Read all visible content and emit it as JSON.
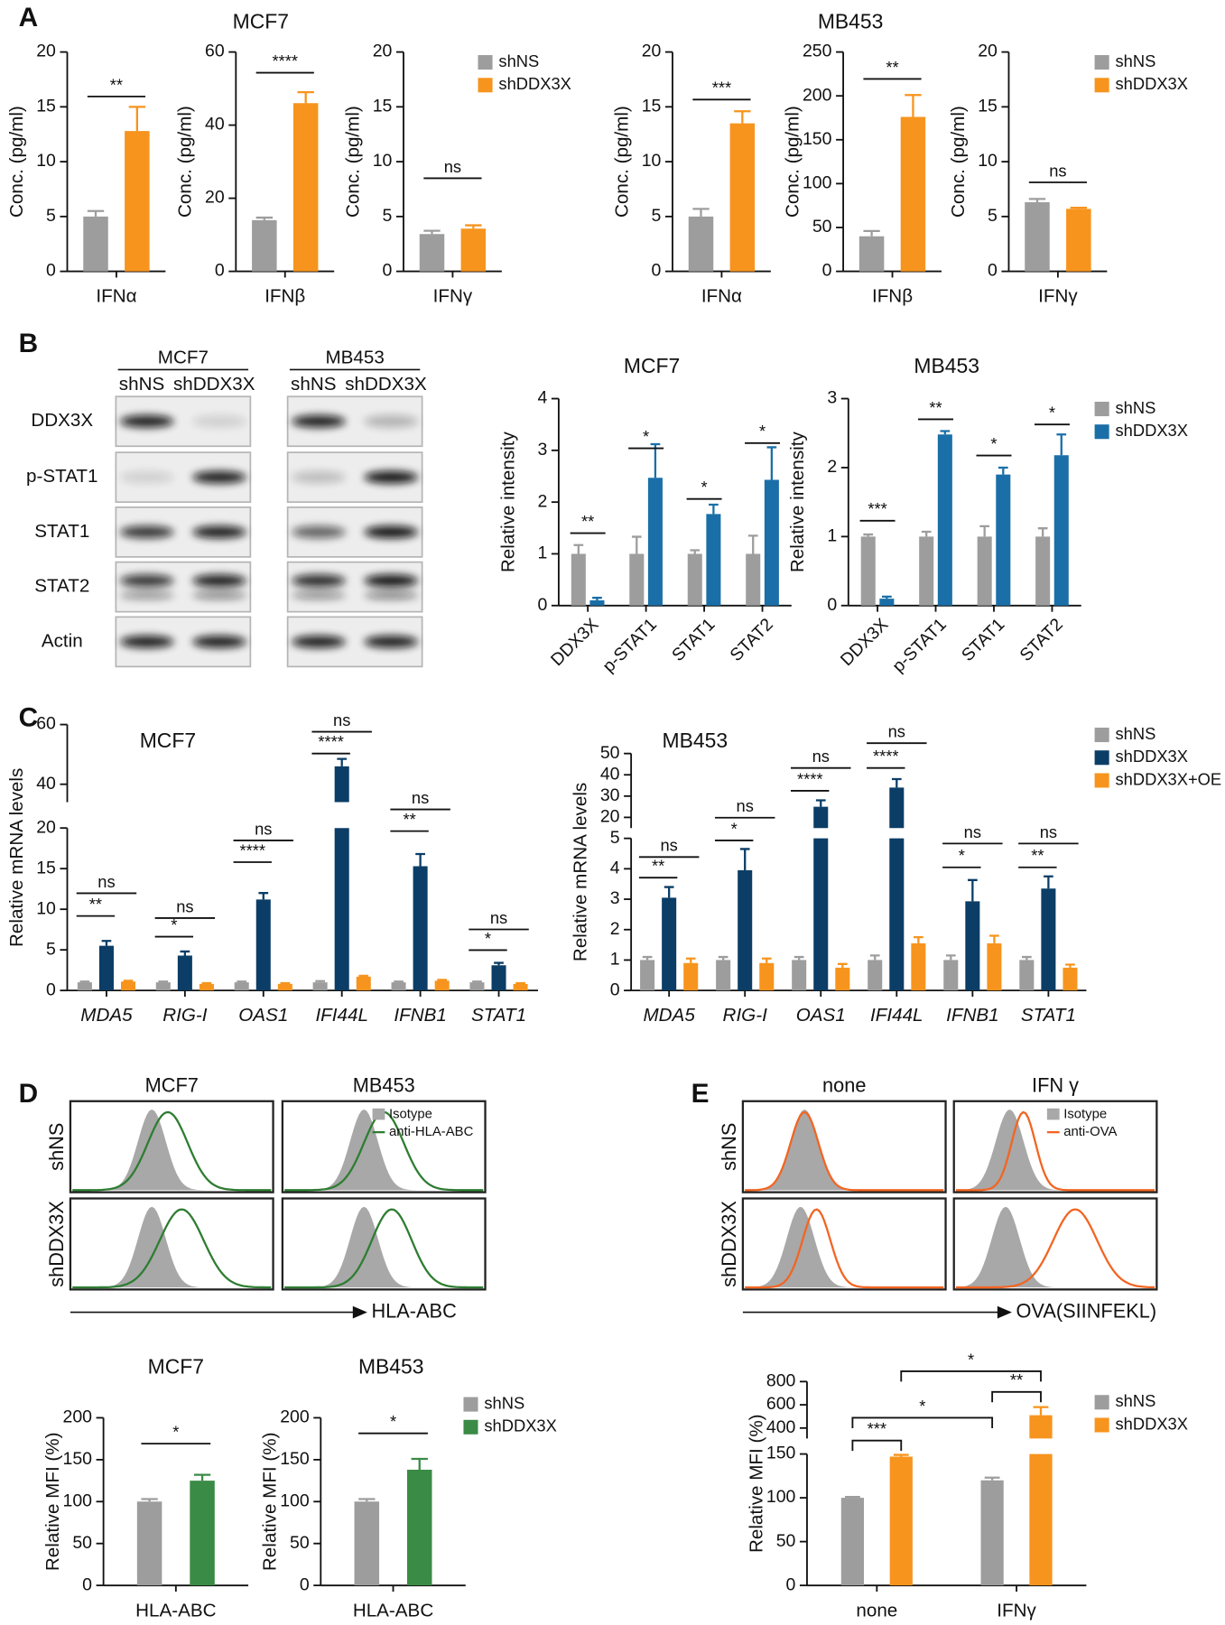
{
  "panels": {
    "letters": [
      "A",
      "B",
      "C",
      "D",
      "E"
    ]
  },
  "blots": {
    "cell_lines": [
      "MCF7",
      "MB453"
    ],
    "conditions": [
      "shNS",
      "shDDX3X"
    ],
    "proteins": [
      "DDX3X",
      "p-STAT1",
      "STAT1",
      "STAT2",
      "Actin"
    ]
  },
  "flow_d": {
    "columns": [
      "MCF7",
      "MB453"
    ],
    "rows": [
      "shNS",
      "shDDX3X"
    ],
    "legend": [
      "Isotype",
      "anti-HLA-ABC"
    ],
    "x_label": "HLA-ABC",
    "color": "#2e7d32"
  },
  "flow_e": {
    "columns": [
      "none",
      "IFN γ"
    ],
    "rows": [
      "shNS",
      "shDDX3X"
    ],
    "legend": [
      "Isotype",
      "anti-OVA"
    ],
    "x_label": "OVA(SIINFEKL)",
    "color": "#f26522"
  },
  "chart_data": [
    {
      "type": "bar",
      "ylabel": "Conc. (pg/ml)",
      "categories": [
        "IFNα"
      ],
      "ylim": [
        0,
        20
      ],
      "yticks": [
        0,
        5,
        10,
        15,
        20
      ],
      "series": [
        {
          "name": "shNS",
          "color": "#9d9d9d",
          "values": [
            5
          ],
          "errors": [
            0.5
          ]
        },
        {
          "name": "shDDX3X",
          "color": "#f7941d",
          "values": [
            12.8
          ],
          "errors": [
            2.2
          ]
        }
      ],
      "annotations": [
        "**"
      ]
    },
    {
      "type": "bar",
      "title": "MCF7",
      "ylabel": "Conc. (pg/ml)",
      "categories": [
        "IFNβ"
      ],
      "ylim": [
        0,
        60
      ],
      "yticks": [
        0,
        20,
        40,
        60
      ],
      "series": [
        {
          "name": "shNS",
          "color": "#9d9d9d",
          "values": [
            14
          ],
          "errors": [
            0.7
          ]
        },
        {
          "name": "shDDX3X",
          "color": "#f7941d",
          "values": [
            46
          ],
          "errors": [
            3
          ]
        }
      ],
      "annotations": [
        "****"
      ]
    },
    {
      "type": "bar",
      "ylabel": "Conc. (pg/ml)",
      "categories": [
        "IFNγ"
      ],
      "ylim": [
        0,
        20
      ],
      "yticks": [
        0,
        5,
        10,
        15,
        20
      ],
      "legend": true,
      "series": [
        {
          "name": "shNS",
          "color": "#9d9d9d",
          "values": [
            3.4
          ],
          "errors": [
            0.3
          ]
        },
        {
          "name": "shDDX3X",
          "color": "#f7941d",
          "values": [
            3.9
          ],
          "errors": [
            0.3
          ]
        }
      ],
      "annotations": [
        "ns"
      ]
    },
    {
      "type": "bar",
      "ylabel": "Conc. (pg/ml)",
      "categories": [
        "IFNα"
      ],
      "ylim": [
        0,
        20
      ],
      "yticks": [
        0,
        5,
        10,
        15,
        20
      ],
      "series": [
        {
          "name": "shNS",
          "color": "#9d9d9d",
          "values": [
            5
          ],
          "errors": [
            0.7
          ]
        },
        {
          "name": "shDDX3X",
          "color": "#f7941d",
          "values": [
            13.5
          ],
          "errors": [
            1.1
          ]
        }
      ],
      "annotations": [
        "***"
      ]
    },
    {
      "type": "bar",
      "title": "MB453",
      "ylabel": "Conc. (pg/ml)",
      "categories": [
        "IFNβ"
      ],
      "ylim": [
        0,
        250
      ],
      "yticks": [
        0,
        50,
        100,
        150,
        200,
        250
      ],
      "series": [
        {
          "name": "shNS",
          "color": "#9d9d9d",
          "values": [
            40
          ],
          "errors": [
            6
          ]
        },
        {
          "name": "shDDX3X",
          "color": "#f7941d",
          "values": [
            176
          ],
          "errors": [
            25
          ]
        }
      ],
      "annotations": [
        "**"
      ]
    },
    {
      "type": "bar",
      "ylabel": "Conc. (pg/ml)",
      "categories": [
        "IFNγ"
      ],
      "ylim": [
        0,
        20
      ],
      "yticks": [
        0,
        5,
        10,
        15,
        20
      ],
      "legend": true,
      "series": [
        {
          "name": "shNS",
          "color": "#9d9d9d",
          "values": [
            6.3
          ],
          "errors": [
            0.3
          ]
        },
        {
          "name": "shDDX3X",
          "color": "#f7941d",
          "values": [
            5.7
          ],
          "errors": [
            0.1
          ]
        }
      ],
      "annotations": [
        "ns"
      ]
    },
    {
      "type": "bar",
      "title": "MCF7",
      "ylabel": "Relative intensity",
      "categories": [
        "DDX3X",
        "p-STAT1",
        "STAT1",
        "STAT2"
      ],
      "ylim": [
        0,
        4
      ],
      "yticks": [
        0,
        1,
        2,
        3,
        4
      ],
      "series": [
        {
          "name": "shNS",
          "color": "#9d9d9d",
          "values": [
            1,
            1,
            1,
            1
          ],
          "errors": [
            0.17,
            0.33,
            0.07,
            0.35
          ]
        },
        {
          "name": "shDDX3X",
          "color": "#1a6fa8",
          "values": [
            0.1,
            2.47,
            1.77,
            2.43
          ],
          "errors": [
            0.05,
            0.65,
            0.18,
            0.63
          ]
        }
      ],
      "annotations": [
        "**",
        "*",
        "*",
        "*"
      ]
    },
    {
      "type": "bar",
      "title": "MB453",
      "ylabel": "Relative intensity",
      "categories": [
        "DDX3X",
        "p-STAT1",
        "STAT1",
        "STAT2"
      ],
      "ylim": [
        0,
        3
      ],
      "yticks": [
        0,
        1,
        2,
        3
      ],
      "legend": true,
      "series": [
        {
          "name": "shNS",
          "color": "#9d9d9d",
          "values": [
            1,
            1,
            1,
            1
          ],
          "errors": [
            0.03,
            0.07,
            0.15,
            0.12
          ]
        },
        {
          "name": "shDDX3X",
          "color": "#1a6fa8",
          "values": [
            0.1,
            2.48,
            1.9,
            2.18
          ],
          "errors": [
            0.03,
            0.05,
            0.1,
            0.3
          ]
        }
      ],
      "annotations": [
        "***",
        "**",
        "*",
        "*"
      ]
    },
    {
      "type": "bar",
      "title": "MCF7",
      "ylabel": "Relative mRNA levels",
      "categories": [
        "MDA5",
        "RIG-I",
        "OAS1",
        "IFI44L",
        "IFNB1",
        "STAT1"
      ],
      "ylim": [
        0,
        60
      ],
      "ybreak": [
        20,
        34
      ],
      "yticks": [
        0,
        5,
        10,
        15,
        20,
        40,
        60
      ],
      "series": [
        {
          "name": "shNS",
          "color": "#9d9d9d",
          "values": [
            1,
            1,
            1,
            1,
            1,
            1
          ],
          "errors": [
            0.1,
            0.1,
            0.1,
            0.15,
            0.1,
            0.1
          ]
        },
        {
          "name": "shDDX3X",
          "color": "#0b3d66",
          "values": [
            5.5,
            4.3,
            11.2,
            46,
            15.3,
            3.1
          ],
          "errors": [
            0.6,
            0.5,
            0.8,
            2.5,
            1.5,
            0.3
          ]
        },
        {
          "name": "shDDX3X+OE",
          "color": "#f7941d",
          "values": [
            1.1,
            0.8,
            0.8,
            1.7,
            1.2,
            0.8
          ],
          "errors": [
            0.1,
            0.1,
            0.1,
            0.1,
            0.1,
            0.1
          ]
        }
      ],
      "annotations": [
        "**",
        "ns",
        "*",
        "ns",
        "****",
        "ns",
        "****",
        "ns",
        "**",
        "ns",
        "*",
        "ns"
      ]
    },
    {
      "type": "bar",
      "title": "MB453",
      "ylabel": "Relative mRNA levels",
      "categories": [
        "MDA5",
        "RIG-I",
        "OAS1",
        "IFI44L",
        "IFNB1",
        "STAT1"
      ],
      "ylim": [
        0,
        50
      ],
      "ybreak": [
        5,
        15
      ],
      "yticks": [
        0,
        1,
        2,
        3,
        4,
        5,
        20,
        30,
        40,
        50
      ],
      "legend": true,
      "series": [
        {
          "name": "shNS",
          "color": "#9d9d9d",
          "values": [
            1,
            1,
            1,
            1,
            1,
            1
          ],
          "errors": [
            0.1,
            0.1,
            0.1,
            0.15,
            0.15,
            0.1
          ]
        },
        {
          "name": "shDDX3X",
          "color": "#0b3d66",
          "values": [
            3.05,
            3.95,
            25,
            34,
            2.93,
            3.35
          ],
          "errors": [
            0.35,
            0.7,
            3,
            4,
            0.7,
            0.4
          ]
        },
        {
          "name": "shDDX3X+OE",
          "color": "#f7941d",
          "values": [
            0.9,
            0.9,
            0.75,
            1.55,
            1.55,
            0.75
          ],
          "errors": [
            0.15,
            0.15,
            0.12,
            0.2,
            0.25,
            0.1
          ]
        }
      ],
      "annotations": [
        "**",
        "ns",
        "*",
        "ns",
        "****",
        "ns",
        "****",
        "ns",
        "*",
        "ns",
        "**",
        "ns"
      ]
    },
    {
      "type": "bar",
      "title": "MCF7",
      "ylabel": "Relative MFI (%)",
      "categories": [
        "HLA-ABC"
      ],
      "ylim": [
        0,
        200
      ],
      "yticks": [
        0,
        50,
        100,
        150,
        200
      ],
      "series": [
        {
          "name": "shNS",
          "color": "#9d9d9d",
          "values": [
            100
          ],
          "errors": [
            3
          ]
        },
        {
          "name": "shDDX3X",
          "color": "#3a8b45",
          "values": [
            125
          ],
          "errors": [
            7
          ]
        }
      ],
      "annotations": [
        "*"
      ]
    },
    {
      "type": "bar",
      "title": "MB453",
      "ylabel": "Relative MFI (%)",
      "categories": [
        "HLA-ABC"
      ],
      "ylim": [
        0,
        200
      ],
      "yticks": [
        0,
        50,
        100,
        150,
        200
      ],
      "legend": true,
      "series": [
        {
          "name": "shNS",
          "color": "#9d9d9d",
          "values": [
            100
          ],
          "errors": [
            3
          ]
        },
        {
          "name": "shDDX3X",
          "color": "#3a8b45",
          "values": [
            138
          ],
          "errors": [
            13
          ]
        }
      ],
      "annotations": [
        "*"
      ]
    },
    {
      "type": "bar",
      "ylabel": "Relative MFI (%)",
      "categories": [
        "none",
        "IFNγ"
      ],
      "ylim": [
        0,
        800
      ],
      "ybreak": [
        150,
        310
      ],
      "yticks": [
        0,
        50,
        100,
        150,
        400,
        600,
        800
      ],
      "legend": true,
      "series": [
        {
          "name": "shNS",
          "color": "#9d9d9d",
          "values": [
            100,
            120
          ],
          "errors": [
            1,
            3
          ]
        },
        {
          "name": "shDDX3X",
          "color": "#f7941d",
          "values": [
            147,
            510
          ],
          "errors": [
            2,
            70
          ]
        }
      ],
      "annotations": [
        "***",
        "**",
        "*",
        "*"
      ]
    }
  ]
}
